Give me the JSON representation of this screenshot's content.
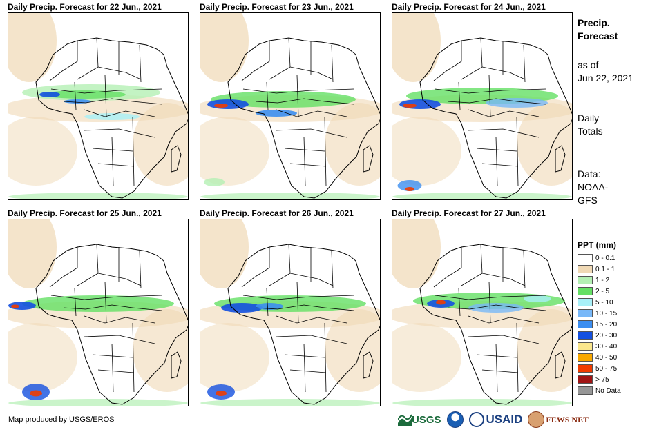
{
  "panels": [
    {
      "title": "Daily Precip. Forecast for 22 Jun., 2021"
    },
    {
      "title": "Daily Precip. Forecast for 23 Jun., 2021"
    },
    {
      "title": "Daily Precip. Forecast for 24 Jun., 2021"
    },
    {
      "title": "Daily Precip. Forecast for 25 Jun., 2021"
    },
    {
      "title": "Daily Precip. Forecast for 26 Jun., 2021"
    },
    {
      "title": "Daily Precip. Forecast for 27 Jun., 2021"
    }
  ],
  "sidebar": {
    "title_line1": "Precip.",
    "title_line2": "Forecast",
    "asof_line1": "as of",
    "asof_line2": "Jun 22, 2021",
    "totals_line1": "Daily",
    "totals_line2": "Totals",
    "data_line1": "Data:",
    "data_line2": "NOAA-",
    "data_line3": "GFS"
  },
  "legend": {
    "title": "PPT (mm)",
    "items": [
      {
        "label": "0 - 0.1",
        "color": "#ffffff"
      },
      {
        "label": "0.1 - 1",
        "color": "#f0d9b5"
      },
      {
        "label": "1 - 2",
        "color": "#b4f0b4"
      },
      {
        "label": "2 - 5",
        "color": "#64e064"
      },
      {
        "label": "5 - 10",
        "color": "#a8f0f8"
      },
      {
        "label": "10 - 15",
        "color": "#78b8f8"
      },
      {
        "label": "15 - 20",
        "color": "#3c8ef0"
      },
      {
        "label": "20 - 30",
        "color": "#1450e0"
      },
      {
        "label": "30 - 40",
        "color": "#fae68c"
      },
      {
        "label": "40 - 50",
        "color": "#f8a800"
      },
      {
        "label": "50 - 75",
        "color": "#f03c00"
      },
      {
        "label": "> 75",
        "color": "#a01414"
      },
      {
        "label": "No Data",
        "color": "#969696"
      }
    ]
  },
  "footer": {
    "credit": "Map produced by USGS/EROS",
    "logo_usgs": "USGS",
    "logo_usaid": "USAID",
    "logo_fews": "FEWS NET"
  }
}
